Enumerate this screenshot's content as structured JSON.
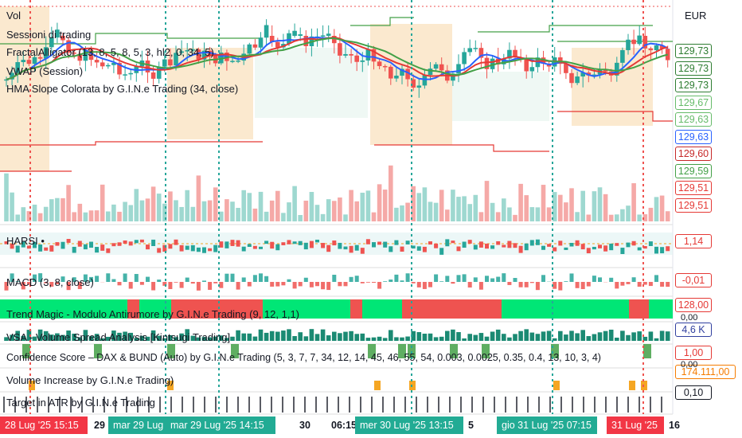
{
  "currency": "EUR",
  "legends": {
    "vol": "Vol",
    "sessions": "Sessioni di trading",
    "fractal": "FractalAlligator (13, 8, 5, 8, 5, 3, hl2, 0, 34, 5)",
    "vwap": "VWAP (Session)",
    "hma": "HMA Slope Colorata by G.I.N.e Trading (34, close)",
    "harsi": "HARSI",
    "macd": "MACD (3, 8, close)",
    "trend_magic": "Trend Magic - Modulo Antirumore by G.I.N.e Trading (9, 12, 1,1)",
    "vsa": "VSA - Volume Spread Analysis [Kintsugi Trading]",
    "confidence": "Confidence Score – DAX & BUND (Auto) by G.I.N.e Trading (5, 3, 7, 7, 34, 12, 14, 45, 46, 55, 54, 0.003, 0.0025, 0.35, 0.4, 13, 10, 3, 4)",
    "volume_increase": "Volume Increase by G.I.N.e Trading)",
    "target_atr": "Target in ATR by G.I.N.e Trading"
  },
  "price_labels": [
    {
      "text": "129,73",
      "color": "#2e7d32"
    },
    {
      "text": "129,73",
      "color": "#2e7d32"
    },
    {
      "text": "129,73",
      "color": "#2e7d32"
    },
    {
      "text": "129,67",
      "color": "#66bb6a"
    },
    {
      "text": "129,63",
      "color": "#66bb6a"
    },
    {
      "text": "129,63",
      "color": "#2962ff"
    },
    {
      "text": "129,60",
      "color": "#c62828"
    },
    {
      "text": "129,59",
      "color": "#43a047"
    },
    {
      "text": "129,51",
      "color": "#e53935"
    },
    {
      "text": "129,51",
      "color": "#e53935"
    }
  ],
  "pane_values": {
    "harsi": {
      "text": "1,14",
      "color": "#e53935"
    },
    "macd": {
      "text": "-0,01",
      "color": "#e53935"
    },
    "trend_magic": {
      "text": "128,00",
      "color": "#e53935"
    },
    "trend_magic_zero": "0,00",
    "vsa": {
      "text": "4,6 K",
      "color": "#303f9f"
    },
    "confidence": {
      "text": "1,00",
      "color": "#e53935"
    },
    "confidence_zero": "0,00",
    "volume_increase": {
      "text": "174.111,00",
      "color": "#f57c00"
    },
    "target_atr": {
      "text": "0,10",
      "color": "#131722"
    }
  },
  "time_axis": [
    {
      "text": "28 Lug '25   15:15",
      "highlight": "red"
    },
    {
      "text": "29",
      "highlight": "none"
    },
    {
      "text": "mar 29 Lug",
      "highlight": "green"
    },
    {
      "text": "mar 29 Lug '25   14:15",
      "highlight": "green"
    },
    {
      "text": "30",
      "highlight": "none"
    },
    {
      "text": "06:15",
      "highlight": "none"
    },
    {
      "text": "mer 30 Lug '25   13:15",
      "highlight": "green"
    },
    {
      "text": "5",
      "highlight": "none"
    },
    {
      "text": "gio 31 Lug '25   07:15",
      "highlight": "green"
    },
    {
      "text": "31 Lug '25",
      "highlight": "red"
    },
    {
      "text": "16",
      "highlight": "none"
    }
  ],
  "trend_magic_colors": [
    "#00e676",
    "#ef5350",
    "#00e676",
    "#ef5350",
    "#00e676",
    "#ef5350",
    "#00e676",
    "#ef5350",
    "#00e676"
  ],
  "colors": {
    "up": "#26a69a",
    "down": "#ef5350",
    "session_fill": "#fbe9cf",
    "green_dotted": "#26a69a",
    "red_dotted": "#ef5350"
  }
}
